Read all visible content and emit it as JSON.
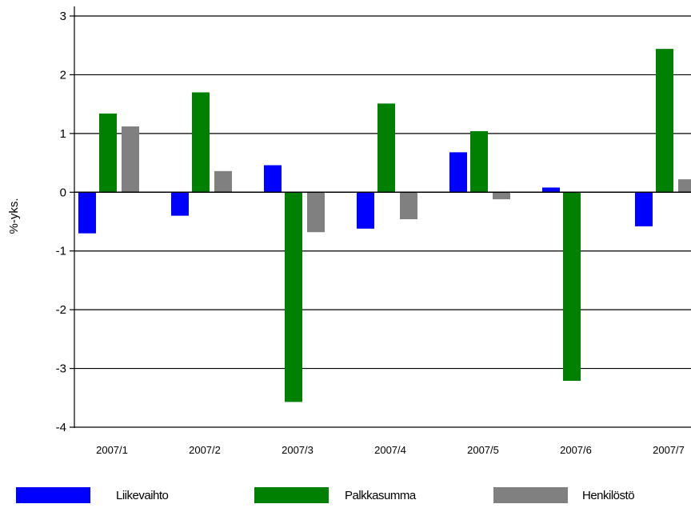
{
  "chart_data": {
    "type": "bar",
    "title": "",
    "xlabel": "",
    "ylabel": "%-yks.",
    "ylim": [
      -4,
      3
    ],
    "yticks": [
      "3",
      "2",
      "1",
      "0",
      "-1",
      "-2",
      "-3",
      "-4"
    ],
    "categories": [
      "2007/1",
      "2007/2",
      "2007/3",
      "2007/4",
      "2007/5",
      "2007/6",
      "2007/7"
    ],
    "series": [
      {
        "name": "Liikevaihto",
        "color": "#0000ff",
        "values": [
          -0.7,
          -0.4,
          0.46,
          -0.62,
          0.68,
          0.08,
          -0.58
        ]
      },
      {
        "name": "Palkkasumma",
        "color": "#008000",
        "values": [
          1.34,
          1.7,
          -3.57,
          1.51,
          1.04,
          -3.21,
          2.44
        ]
      },
      {
        "name": "Henkilöstö",
        "color": "#808080",
        "values": [
          1.12,
          0.36,
          -0.68,
          -0.46,
          -0.12,
          0.0,
          0.22
        ]
      }
    ],
    "grid": true,
    "legend_position": "bottom"
  }
}
